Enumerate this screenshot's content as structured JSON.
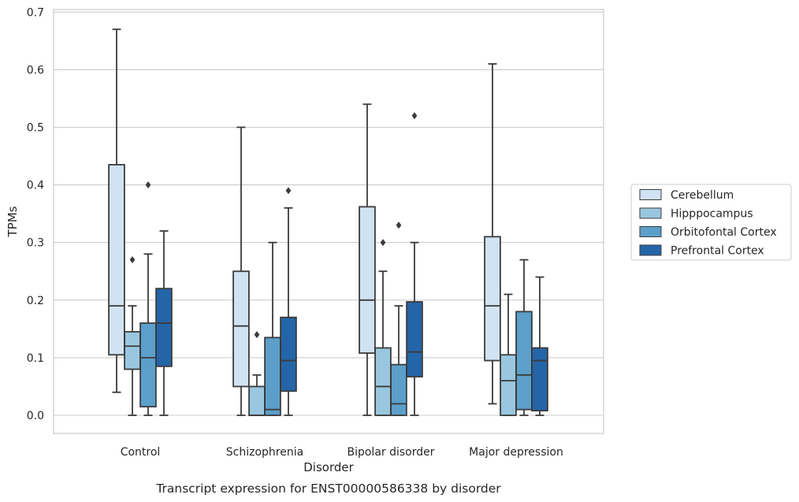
{
  "chart_data": {
    "type": "boxplot",
    "title": "Transcript expression for ENST00000586338 by disorder",
    "xlabel": "Disorder",
    "ylabel": "TPMs",
    "ylim": [
      -0.032,
      0.705
    ],
    "yticks": [
      "0.0",
      "0.1",
      "0.2",
      "0.3",
      "0.4",
      "0.5",
      "0.6",
      "0.7"
    ],
    "grid": true,
    "legend_position": "right",
    "categories": [
      "Control",
      "Schizophrenia",
      "Bipolar disorder",
      "Major depression"
    ],
    "series": [
      {
        "name": "Cerebellum",
        "color": "#d1e2f2",
        "boxes": [
          {
            "whislo": 0.04,
            "q1": 0.105,
            "med": 0.19,
            "q3": 0.435,
            "whishi": 0.67,
            "fliers": []
          },
          {
            "whislo": 0.0,
            "q1": 0.05,
            "med": 0.155,
            "q3": 0.25,
            "whishi": 0.5,
            "fliers": []
          },
          {
            "whislo": 0.0,
            "q1": 0.108,
            "med": 0.2,
            "q3": 0.362,
            "whishi": 0.54,
            "fliers": []
          },
          {
            "whislo": 0.02,
            "q1": 0.095,
            "med": 0.19,
            "q3": 0.31,
            "whishi": 0.61,
            "fliers": []
          }
        ]
      },
      {
        "name": "Hipppocampus",
        "color": "#9ac7e0",
        "boxes": [
          {
            "whislo": 0.0,
            "q1": 0.08,
            "med": 0.12,
            "q3": 0.145,
            "whishi": 0.19,
            "fliers": [
              0.27
            ]
          },
          {
            "whislo": 0.0,
            "q1": 0.0,
            "med": 0.0,
            "q3": 0.05,
            "whishi": 0.07,
            "fliers": [
              0.14
            ]
          },
          {
            "whislo": 0.0,
            "q1": 0.0,
            "med": 0.05,
            "q3": 0.117,
            "whishi": 0.25,
            "fliers": [
              0.3
            ]
          },
          {
            "whislo": 0.0,
            "q1": 0.0,
            "med": 0.06,
            "q3": 0.105,
            "whishi": 0.21,
            "fliers": []
          }
        ]
      },
      {
        "name": "Orbitofontal Cortex",
        "color": "#5b9fca",
        "boxes": [
          {
            "whislo": 0.0,
            "q1": 0.015,
            "med": 0.1,
            "q3": 0.16,
            "whishi": 0.28,
            "fliers": [
              0.4
            ]
          },
          {
            "whislo": 0.0,
            "q1": 0.0,
            "med": 0.01,
            "q3": 0.135,
            "whishi": 0.3,
            "fliers": []
          },
          {
            "whislo": 0.0,
            "q1": 0.0,
            "med": 0.02,
            "q3": 0.088,
            "whishi": 0.19,
            "fliers": [
              0.33
            ]
          },
          {
            "whislo": 0.0,
            "q1": 0.01,
            "med": 0.07,
            "q3": 0.18,
            "whishi": 0.27,
            "fliers": []
          }
        ]
      },
      {
        "name": "Prefrontal Cortex",
        "color": "#2465a8",
        "boxes": [
          {
            "whislo": 0.0,
            "q1": 0.085,
            "med": 0.16,
            "q3": 0.22,
            "whishi": 0.32,
            "fliers": []
          },
          {
            "whislo": 0.0,
            "q1": 0.042,
            "med": 0.095,
            "q3": 0.17,
            "whishi": 0.36,
            "fliers": [
              0.39
            ]
          },
          {
            "whislo": 0.0,
            "q1": 0.067,
            "med": 0.11,
            "q3": 0.197,
            "whishi": 0.3,
            "fliers": [
              0.52
            ]
          },
          {
            "whislo": 0.0,
            "q1": 0.008,
            "med": 0.095,
            "q3": 0.117,
            "whishi": 0.24,
            "fliers": []
          }
        ]
      }
    ]
  }
}
